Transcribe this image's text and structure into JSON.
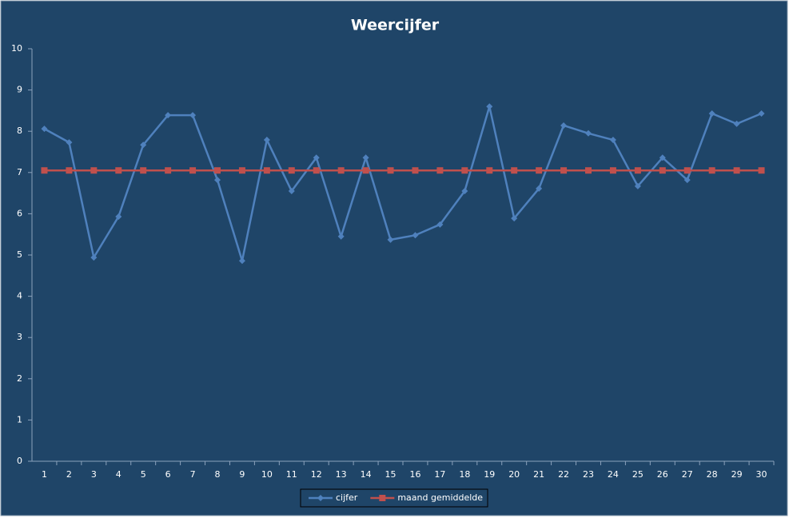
{
  "chart_data": {
    "type": "line",
    "title": "Weercijfer",
    "categories": [
      "1",
      "2",
      "3",
      "4",
      "5",
      "6",
      "7",
      "8",
      "9",
      "10",
      "11",
      "12",
      "13",
      "14",
      "15",
      "16",
      "17",
      "18",
      "19",
      "20",
      "21",
      "22",
      "23",
      "24",
      "25",
      "26",
      "27",
      "28",
      "29",
      "30"
    ],
    "series": [
      {
        "name": "cijfer",
        "color": "#4f81bd",
        "marker": "diamond",
        "values": [
          8.06,
          7.73,
          4.94,
          5.93,
          7.67,
          8.39,
          8.39,
          6.82,
          4.86,
          7.79,
          6.55,
          7.36,
          5.45,
          7.36,
          5.37,
          5.48,
          5.74,
          6.55,
          8.6,
          5.89,
          6.61,
          8.14,
          7.95,
          7.79,
          6.67,
          7.36,
          6.82,
          8.43,
          8.18,
          8.43
        ]
      },
      {
        "name": "maand gemiddelde",
        "color": "#c0504d",
        "marker": "square",
        "values": [
          7.05,
          7.05,
          7.05,
          7.05,
          7.05,
          7.05,
          7.05,
          7.05,
          7.05,
          7.05,
          7.05,
          7.05,
          7.05,
          7.05,
          7.05,
          7.05,
          7.05,
          7.05,
          7.05,
          7.05,
          7.05,
          7.05,
          7.05,
          7.05,
          7.05,
          7.05,
          7.05,
          7.05,
          7.05,
          7.05
        ]
      }
    ],
    "ylim": [
      0,
      10
    ],
    "yticks": [
      0,
      1,
      2,
      3,
      4,
      5,
      6,
      7,
      8,
      9,
      10
    ],
    "grid": false,
    "legend": "bottom"
  }
}
